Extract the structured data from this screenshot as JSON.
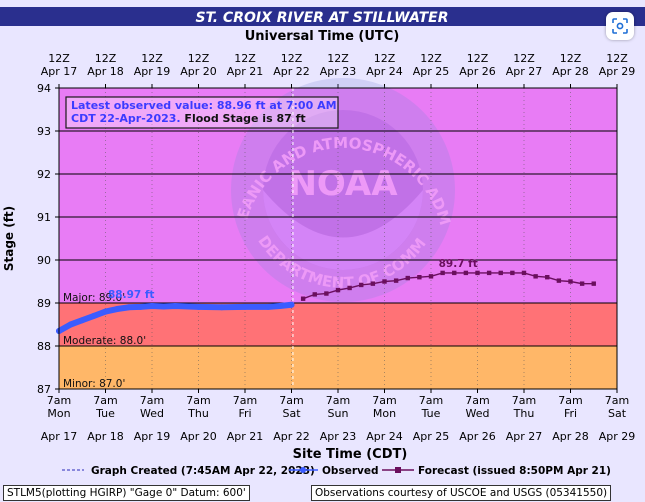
{
  "header": {
    "title": "ST. CROIX RIVER AT STILLWATER",
    "top_axis_title": "Universal Time (UTC)"
  },
  "annotation": {
    "line1": "Latest observed value: 88.96 ft at 7:00 AM",
    "line2_blue": "CDT 22-Apr-2023.",
    "line2_black": " Flood Stage is 87 ft"
  },
  "chart_data": {
    "type": "line",
    "title": "ST. CROIX RIVER AT STILLWATER",
    "xlabel": "Site Time (CDT)",
    "x2label": "Universal Time (UTC)",
    "ylabel": "Stage (ft)",
    "ylim": [
      87,
      94
    ],
    "yticks": [
      "87",
      "88",
      "89",
      "90",
      "91",
      "92",
      "93",
      "94"
    ],
    "xrange": [
      "2023-04-17 07:00",
      "2023-04-29 07:00"
    ],
    "x_ticks_local": [
      {
        "time": "7am",
        "day": "Mon",
        "date": "Apr 17"
      },
      {
        "time": "7am",
        "day": "Tue",
        "date": "Apr 18"
      },
      {
        "time": "7am",
        "day": "Wed",
        "date": "Apr 19"
      },
      {
        "time": "7am",
        "day": "Thu",
        "date": "Apr 20"
      },
      {
        "time": "7am",
        "day": "Fri",
        "date": "Apr 21"
      },
      {
        "time": "7am",
        "day": "Sat",
        "date": "Apr 22"
      },
      {
        "time": "7am",
        "day": "Sun",
        "date": "Apr 23"
      },
      {
        "time": "7am",
        "day": "Mon",
        "date": "Apr 24"
      },
      {
        "time": "7am",
        "day": "Tue",
        "date": "Apr 25"
      },
      {
        "time": "7am",
        "day": "Wed",
        "date": "Apr 26"
      },
      {
        "time": "7am",
        "day": "Thu",
        "date": "Apr 27"
      },
      {
        "time": "7am",
        "day": "Fri",
        "date": "Apr 28"
      },
      {
        "time": "7am",
        "day": "Sat",
        "date": "Apr 29"
      }
    ],
    "x_ticks_utc": [
      {
        "time": "12Z",
        "date": "Apr 17"
      },
      {
        "time": "12Z",
        "date": "Apr 18"
      },
      {
        "time": "12Z",
        "date": "Apr 19"
      },
      {
        "time": "12Z",
        "date": "Apr 20"
      },
      {
        "time": "12Z",
        "date": "Apr 21"
      },
      {
        "time": "12Z",
        "date": "Apr 22"
      },
      {
        "time": "12Z",
        "date": "Apr 23"
      },
      {
        "time": "12Z",
        "date": "Apr 24"
      },
      {
        "time": "12Z",
        "date": "Apr 25"
      },
      {
        "time": "12Z",
        "date": "Apr 26"
      },
      {
        "time": "12Z",
        "date": "Apr 27"
      },
      {
        "time": "12Z",
        "date": "Apr 28"
      },
      {
        "time": "12Z",
        "date": "Apr 29"
      }
    ],
    "flood_categories": [
      {
        "label": "Major: 89.0'",
        "from": 89,
        "to": 94,
        "color": "#e87cf5"
      },
      {
        "label": "Moderate: 88.0'",
        "from": 88,
        "to": 89,
        "color": "#ff7276"
      },
      {
        "label": "Minor: 87.0'",
        "from": 87,
        "to": 88,
        "color": "#ffb768"
      }
    ],
    "colors": {
      "observed": "#3b5cff",
      "forecast": "#6a0f5e",
      "graph_created": "#5050c8"
    },
    "series": [
      {
        "name": "Observed",
        "peak_label": "88.97 ft",
        "x": [
          "2023-04-17 07:00",
          "2023-04-17 13:00",
          "2023-04-17 19:00",
          "2023-04-18 01:00",
          "2023-04-18 07:00",
          "2023-04-18 13:00",
          "2023-04-18 19:00",
          "2023-04-19 01:00",
          "2023-04-19 07:00",
          "2023-04-19 13:00",
          "2023-04-19 19:00",
          "2023-04-20 07:00",
          "2023-04-20 19:00",
          "2023-04-21 07:00",
          "2023-04-21 19:00",
          "2023-04-22 01:00",
          "2023-04-22 07:00"
        ],
        "y": [
          88.35,
          88.5,
          88.6,
          88.7,
          88.8,
          88.86,
          88.9,
          88.91,
          88.93,
          88.92,
          88.93,
          88.91,
          88.9,
          88.91,
          88.91,
          88.93,
          88.96
        ]
      },
      {
        "name": "Forecast (issued 8:50PM Apr 21)",
        "peak_label": "89.7 ft",
        "x": [
          "2023-04-22 13:00",
          "2023-04-22 19:00",
          "2023-04-23 01:00",
          "2023-04-23 07:00",
          "2023-04-23 13:00",
          "2023-04-23 19:00",
          "2023-04-24 01:00",
          "2023-04-24 07:00",
          "2023-04-24 13:00",
          "2023-04-24 19:00",
          "2023-04-25 01:00",
          "2023-04-25 07:00",
          "2023-04-25 13:00",
          "2023-04-25 19:00",
          "2023-04-26 01:00",
          "2023-04-26 07:00",
          "2023-04-26 13:00",
          "2023-04-26 19:00",
          "2023-04-27 01:00",
          "2023-04-27 07:00",
          "2023-04-27 13:00",
          "2023-04-27 19:00",
          "2023-04-28 01:00",
          "2023-04-28 07:00",
          "2023-04-28 13:00",
          "2023-04-28 19:00"
        ],
        "y": [
          89.1,
          89.2,
          89.22,
          89.3,
          89.35,
          89.42,
          89.45,
          89.5,
          89.52,
          89.58,
          89.6,
          89.62,
          89.7,
          89.7,
          89.7,
          89.7,
          89.7,
          89.7,
          89.7,
          89.7,
          89.62,
          89.6,
          89.52,
          89.5,
          89.45,
          89.45
        ]
      }
    ],
    "graph_created_x": "2023-04-22 07:45",
    "grid": true
  },
  "legend": {
    "graph_created": "Graph Created (7:45AM Apr 22, 2023)",
    "observed": "Observed",
    "forecast": "Forecast (issued 8:50PM Apr 21)"
  },
  "watermark": {
    "ring_text": "NATIONAL OCEANIC AND ATMOSPHERIC ADMINISTRATION",
    "bottom_text": "U.S. DEPARTMENT OF COMMERCE",
    "center": "NOAA"
  },
  "footer": {
    "left": "STLM5(plotting HGIRP) \"Gage 0\" Datum: 600'",
    "right": "Observations courtesy of USCOE and USGS (05341550)"
  }
}
